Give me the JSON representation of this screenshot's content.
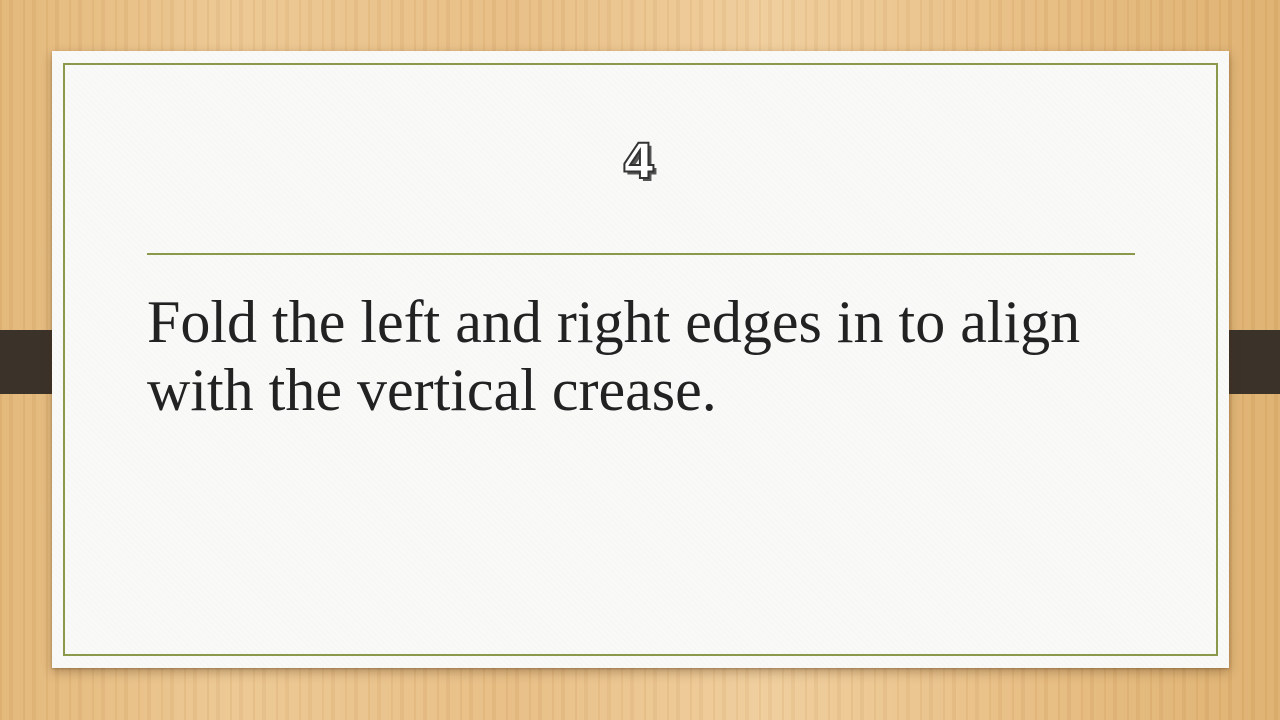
{
  "slide": {
    "number": "4",
    "body_text": "Fold the left and right edges in to align with the vertical crease."
  },
  "colors": {
    "background_wood": "#e7bd84",
    "paper": "#f9f9f8",
    "frame_border": "#8a9a4a",
    "side_tabs": "#3b322a",
    "body_text": "#222222"
  }
}
